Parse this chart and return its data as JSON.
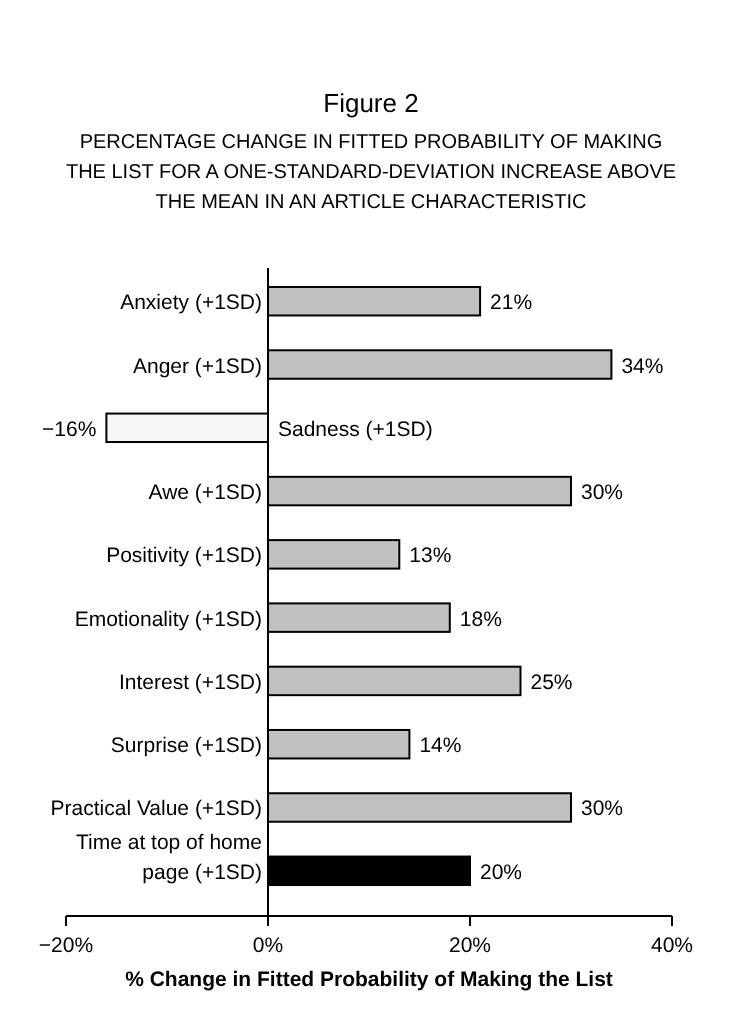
{
  "chart_data": {
    "type": "bar",
    "orientation": "horizontal",
    "title": "Figure 2",
    "subtitle": "PERCENTAGE CHANGE IN FITTED PROBABILITY OF MAKING THE LIST FOR A ONE-STANDARD-DEVIATION INCREASE ABOVE THE MEAN IN AN ARTICLE CHARACTERISTIC",
    "xlabel": "% Change in Fitted Probability of Making the List",
    "categories": [
      "Anxiety (+1SD)",
      "Anger (+1SD)",
      "Sadness (+1SD)",
      "Awe (+1SD)",
      "Positivity (+1SD)",
      "Emotionality (+1SD)",
      "Interest (+1SD)",
      "Surprise (+1SD)",
      "Practical Value (+1SD)",
      "Time at top of home page (+1SD)"
    ],
    "values": [
      21,
      34,
      -16,
      30,
      13,
      18,
      25,
      14,
      30,
      20
    ],
    "colors": [
      "#c0c0c0",
      "#c0c0c0",
      "#f7f7f7",
      "#c0c0c0",
      "#c0c0c0",
      "#c0c0c0",
      "#c0c0c0",
      "#c0c0c0",
      "#c0c0c0",
      "#000000"
    ],
    "value_labels": [
      "21%",
      "34%",
      "−16%",
      "30%",
      "13%",
      "18%",
      "25%",
      "14%",
      "30%",
      "20%"
    ],
    "xlim": [
      -20,
      40
    ],
    "xticks": [
      {
        "value": -20,
        "label": "−20%"
      },
      {
        "value": 0,
        "label": "0%"
      },
      {
        "value": 20,
        "label": "20%"
      },
      {
        "value": 40,
        "label": "40%"
      }
    ],
    "grid": false
  }
}
